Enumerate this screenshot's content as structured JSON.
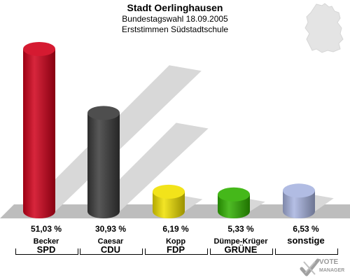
{
  "header": {
    "title": "Stadt Oerlinghausen",
    "subtitle": "Bundestagswahl 18.09.2005",
    "subtitle2": "Erststimmen Südstadtschule"
  },
  "logo": {
    "line1": "VOTE",
    "line2": "MANAGER",
    "icon": "vote-manager-check-icon"
  },
  "map_icon": "germany-map-icon",
  "chart_data": {
    "type": "bar",
    "title": "Stadt Oerlinghausen",
    "subtitle": "Bundestagswahl 18.09.2005 — Erststimmen Südstadtschule",
    "categories": [
      "SPD",
      "CDU",
      "FDP",
      "GRÜNE",
      "sonstige"
    ],
    "candidates": [
      "Becker",
      "Caesar",
      "Kopp",
      "Dümpe-Krüger",
      ""
    ],
    "values": [
      51.03,
      30.93,
      6.19,
      5.33,
      6.53
    ],
    "value_labels": [
      "51,03 %",
      "30,93 %",
      "6,19 %",
      "5,33 %",
      "6,53 %"
    ],
    "colors": [
      "#d0001a",
      "#3a3a3a",
      "#f0e000",
      "#30b000",
      "#a8b4e0"
    ],
    "ylim": [
      0,
      55
    ],
    "grid": false,
    "legend": "none"
  }
}
